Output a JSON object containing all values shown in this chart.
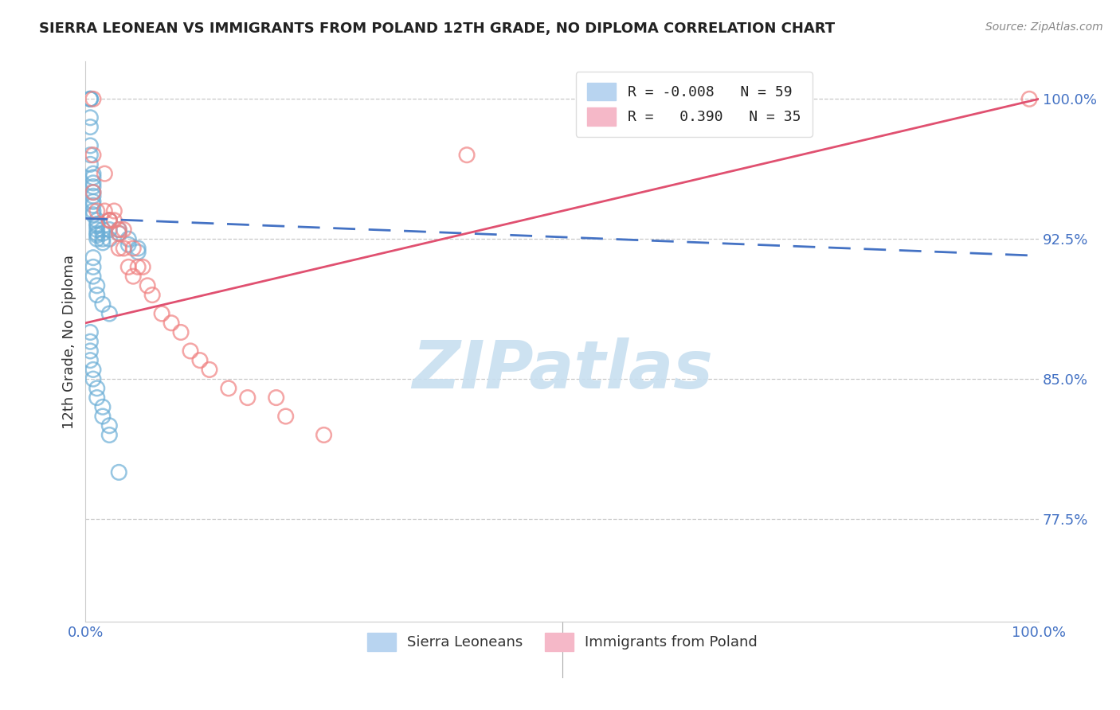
{
  "title": "SIERRA LEONEAN VS IMMIGRANTS FROM POLAND 12TH GRADE, NO DIPLOMA CORRELATION CHART",
  "source": "Source: ZipAtlas.com",
  "ylabel": "12th Grade, No Diploma",
  "watermark": "ZIPatlas",
  "xlim": [
    0.0,
    1.0
  ],
  "ylim": [
    0.72,
    1.02
  ],
  "yticks": [
    0.775,
    0.85,
    0.925,
    1.0
  ],
  "ytick_labels": [
    "77.5%",
    "85.0%",
    "92.5%",
    "100.0%"
  ],
  "xticks": [
    0.0,
    0.2,
    0.4,
    0.6,
    0.8,
    1.0
  ],
  "xtick_labels": [
    "0.0%",
    "",
    "",
    "",
    "",
    "100.0%"
  ],
  "sierra_color": "#6baed6",
  "poland_color": "#f08080",
  "sierra_trend_color": "#4472c4",
  "poland_trend_color": "#e05070",
  "grid_color": "#c8c8c8",
  "background_color": "#ffffff",
  "sierra_x": [
    0.005,
    0.005,
    0.005,
    0.005,
    0.005,
    0.005,
    0.005,
    0.005,
    0.008,
    0.008,
    0.008,
    0.008,
    0.008,
    0.008,
    0.008,
    0.008,
    0.008,
    0.008,
    0.012,
    0.012,
    0.012,
    0.012,
    0.012,
    0.012,
    0.012,
    0.018,
    0.018,
    0.018,
    0.018,
    0.025,
    0.025,
    0.025,
    0.035,
    0.035,
    0.045,
    0.045,
    0.055,
    0.055,
    0.008,
    0.008,
    0.008,
    0.012,
    0.012,
    0.018,
    0.025,
    0.005,
    0.005,
    0.005,
    0.005,
    0.008,
    0.008,
    0.012,
    0.012,
    0.018,
    0.018,
    0.025,
    0.025,
    0.035
  ],
  "sierra_y": [
    1.0,
    1.0,
    1.0,
    0.99,
    0.985,
    0.975,
    0.97,
    0.965,
    0.96,
    0.958,
    0.955,
    0.953,
    0.95,
    0.948,
    0.945,
    0.943,
    0.94,
    0.938,
    0.935,
    0.933,
    0.932,
    0.93,
    0.928,
    0.927,
    0.925,
    0.93,
    0.928,
    0.925,
    0.923,
    0.935,
    0.93,
    0.925,
    0.93,
    0.928,
    0.925,
    0.922,
    0.92,
    0.918,
    0.915,
    0.91,
    0.905,
    0.9,
    0.895,
    0.89,
    0.885,
    0.875,
    0.87,
    0.865,
    0.86,
    0.855,
    0.85,
    0.845,
    0.84,
    0.835,
    0.83,
    0.825,
    0.82,
    0.8
  ],
  "poland_x": [
    0.008,
    0.008,
    0.008,
    0.012,
    0.02,
    0.02,
    0.025,
    0.025,
    0.03,
    0.03,
    0.035,
    0.035,
    0.035,
    0.04,
    0.04,
    0.045,
    0.05,
    0.05,
    0.055,
    0.06,
    0.065,
    0.07,
    0.08,
    0.09,
    0.1,
    0.11,
    0.12,
    0.13,
    0.15,
    0.17,
    0.2,
    0.21,
    0.25,
    0.4,
    0.99
  ],
  "poland_y": [
    1.0,
    0.97,
    0.95,
    0.94,
    0.96,
    0.94,
    0.935,
    0.935,
    0.94,
    0.935,
    0.93,
    0.928,
    0.92,
    0.93,
    0.92,
    0.91,
    0.92,
    0.905,
    0.91,
    0.91,
    0.9,
    0.895,
    0.885,
    0.88,
    0.875,
    0.865,
    0.86,
    0.855,
    0.845,
    0.84,
    0.84,
    0.83,
    0.82,
    0.97,
    1.0
  ],
  "sierra_trend_start_y": 0.936,
  "sierra_trend_end_y": 0.916,
  "poland_trend_start_y": 0.88,
  "poland_trend_end_y": 1.0
}
